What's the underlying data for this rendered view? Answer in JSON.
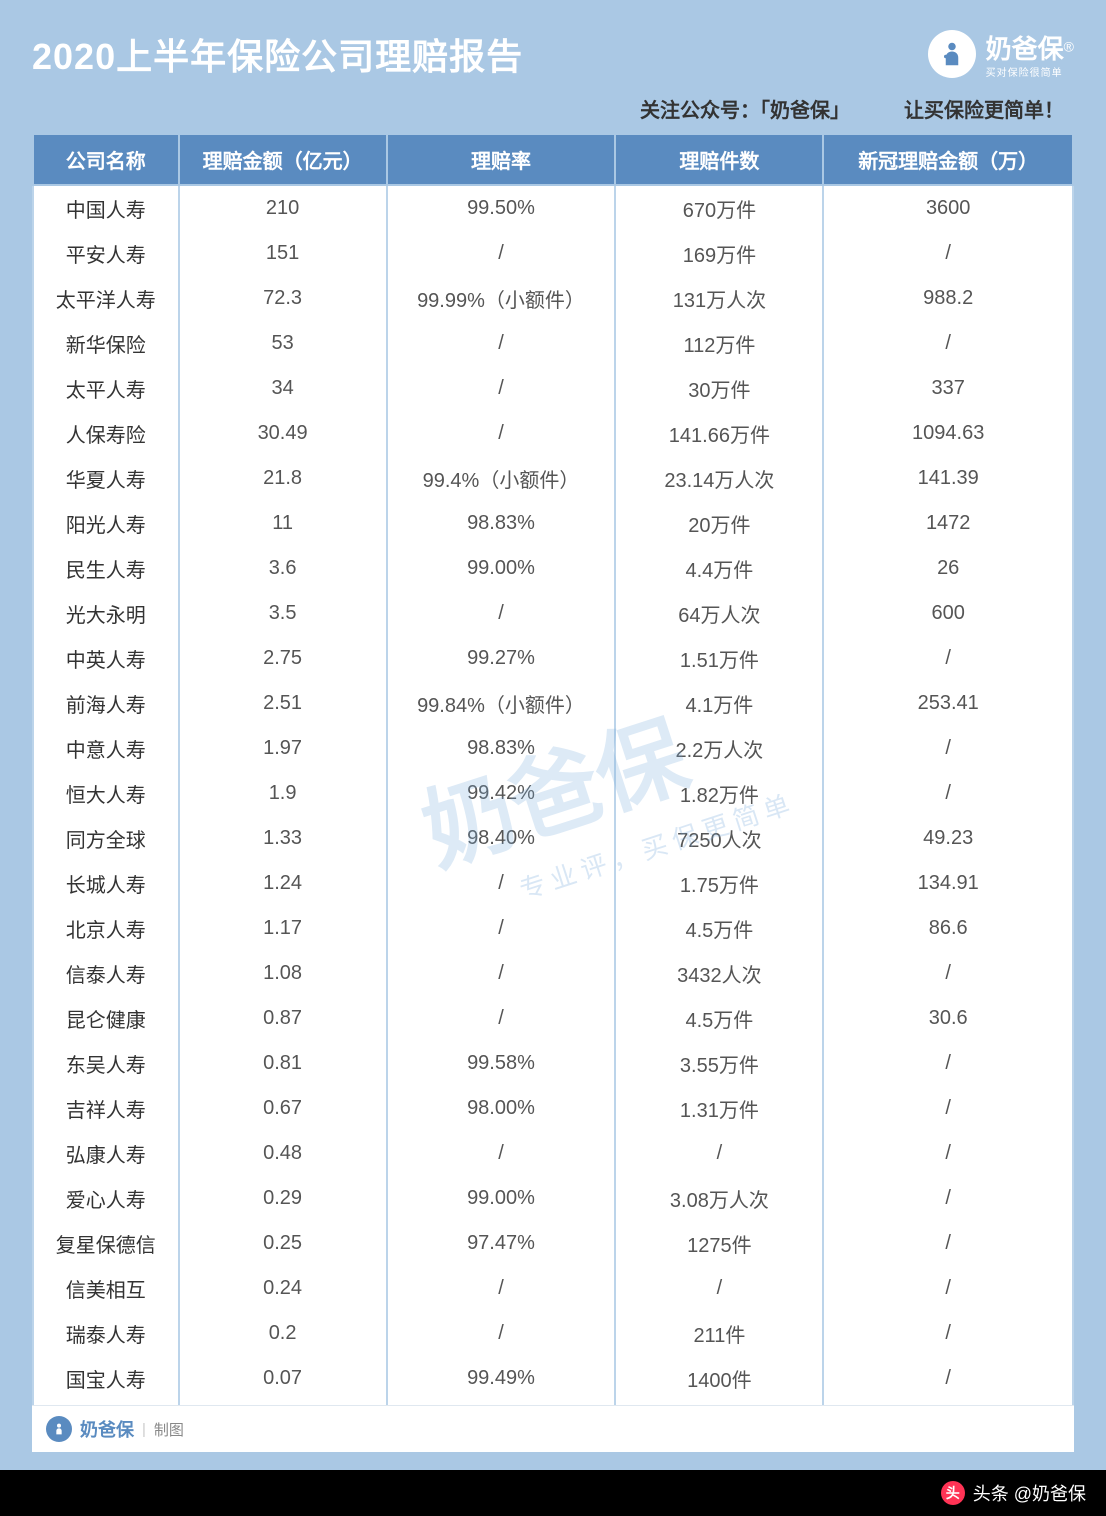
{
  "title": "2020上半年保险公司理赔报告",
  "brand": {
    "name": "奶爸保",
    "tagline": "买对保险很简单"
  },
  "subtitle": {
    "left": "关注公众号：",
    "mid": "「奶爸保」",
    "right": "让买保险更简单！"
  },
  "columns": [
    "公司名称",
    "理赔金额（亿元）",
    "理赔率",
    "理赔件数",
    "新冠理赔金额（万）"
  ],
  "rows": [
    [
      "中国人寿",
      "210",
      "99.50%",
      "670万件",
      "3600"
    ],
    [
      "平安人寿",
      "151",
      "/",
      "169万件",
      "/"
    ],
    [
      "太平洋人寿",
      "72.3",
      "99.99%（小额件）",
      "131万人次",
      "988.2"
    ],
    [
      "新华保险",
      "53",
      "/",
      "112万件",
      "/"
    ],
    [
      "太平人寿",
      "34",
      "/",
      "30万件",
      "337"
    ],
    [
      "人保寿险",
      "30.49",
      "/",
      "141.66万件",
      "1094.63"
    ],
    [
      "华夏人寿",
      "21.8",
      "99.4%（小额件）",
      "23.14万人次",
      "141.39"
    ],
    [
      "阳光人寿",
      "11",
      "98.83%",
      "20万件",
      "1472"
    ],
    [
      "民生人寿",
      "3.6",
      "99.00%",
      "4.4万件",
      "26"
    ],
    [
      "光大永明",
      "3.5",
      "/",
      "64万人次",
      "600"
    ],
    [
      "中英人寿",
      "2.75",
      "99.27%",
      "1.51万件",
      "/"
    ],
    [
      "前海人寿",
      "2.51",
      "99.84%（小额件）",
      "4.1万件",
      "253.41"
    ],
    [
      "中意人寿",
      "1.97",
      "98.83%",
      "2.2万人次",
      "/"
    ],
    [
      "恒大人寿",
      "1.9",
      "99.42%",
      "1.82万件",
      "/"
    ],
    [
      "同方全球",
      "1.33",
      "98.40%",
      "7250人次",
      "49.23"
    ],
    [
      "长城人寿",
      "1.24",
      "/",
      "1.75万件",
      "134.91"
    ],
    [
      "北京人寿",
      "1.17",
      "/",
      "4.5万件",
      "86.6"
    ],
    [
      "信泰人寿",
      "1.08",
      "/",
      "3432人次",
      "/"
    ],
    [
      "昆仑健康",
      "0.87",
      "/",
      "4.5万件",
      "30.6"
    ],
    [
      "东吴人寿",
      "0.81",
      "99.58%",
      "3.55万件",
      "/"
    ],
    [
      "吉祥人寿",
      "0.67",
      "98.00%",
      "1.31万件",
      "/"
    ],
    [
      "弘康人寿",
      "0.48",
      "/",
      "/",
      "/"
    ],
    [
      "爱心人寿",
      "0.29",
      "99.00%",
      "3.08万人次",
      "/"
    ],
    [
      "复星保德信",
      "0.25",
      "97.47%",
      "1275件",
      "/"
    ],
    [
      "信美相互",
      "0.24",
      "/",
      "/",
      "/"
    ],
    [
      "瑞泰人寿",
      "0.2",
      "/",
      "211件",
      "/"
    ],
    [
      "国宝人寿",
      "0.07",
      "99.49%",
      "1400件",
      "/"
    ]
  ],
  "footer": {
    "brand": "奶爸保",
    "note": "制图"
  },
  "attribution": "头条 @奶爸保",
  "watermark": {
    "main": "奶爸保",
    "sub": "专业评，买保更简单"
  },
  "styling": {
    "page_bg": "#aac8e4",
    "header_bg": "#5a8bc0",
    "header_fg": "#ffffff",
    "cell_fg": "#555555",
    "border": "#bcd4ea",
    "title_fg": "#ffffff",
    "title_fontsize": 36,
    "cell_fontsize": 20,
    "col_widths_pct": [
      14,
      20,
      22,
      20,
      24
    ],
    "watermark_color": "rgba(120,170,220,0.25)"
  }
}
